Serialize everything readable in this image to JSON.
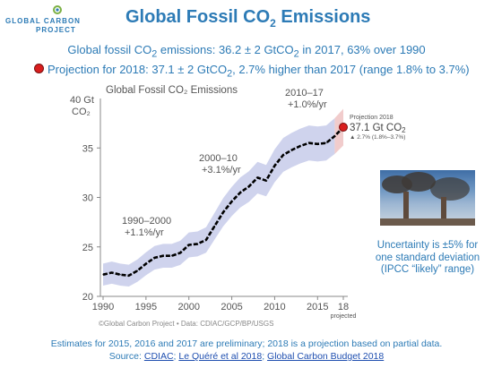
{
  "header": {
    "logo_top": "GLOBAL CARBON",
    "logo_bottom": "PROJECT",
    "title_main": "Global Fossil CO",
    "title_sub": "2",
    "title_end": " Emissions"
  },
  "summary": {
    "line1_a": "Global fossil CO",
    "line1_sub": "2",
    "line1_b": " emissions: 36.2 ± 2 GtCO",
    "line1_sub2": "2",
    "line1_c": " in 2017, 63% over 1990",
    "line2_a": "Projection for 2018: 37.1 ± 2 GtCO",
    "line2_sub": "2",
    "line2_b": ", 2.7% higher than 2017 (range 1.8% to 3.7%)"
  },
  "chart_data": {
    "type": "line",
    "title": "Global Fossil CO₂ Emissions",
    "xlim": [
      1990,
      2018
    ],
    "ylim": [
      20,
      40
    ],
    "ylabel_top": "40 Gt",
    "ylabel_unit": "CO₂",
    "x_ticks": [
      "1990",
      "1995",
      "2000",
      "2005",
      "2010",
      "2015",
      "18"
    ],
    "x_tick_sub": "projected",
    "y_ticks": [
      "20",
      "25",
      "30",
      "35"
    ],
    "grid": false,
    "series": [
      {
        "x": [
          1990,
          1991,
          1992,
          1993,
          1994,
          1995,
          1996,
          1997,
          1998,
          1999,
          2000,
          2001,
          2002,
          2003,
          2004,
          2005,
          2006,
          2007,
          2008,
          2009,
          2010,
          2011,
          2012,
          2013,
          2014,
          2015,
          2016,
          2017,
          2018
        ],
        "y": [
          22.2,
          22.4,
          22.2,
          22.1,
          22.6,
          23.3,
          23.9,
          24.1,
          24.1,
          24.4,
          25.2,
          25.3,
          25.7,
          27.1,
          28.5,
          29.6,
          30.5,
          31.1,
          32.0,
          31.7,
          33.2,
          34.3,
          34.8,
          35.2,
          35.5,
          35.4,
          35.5,
          36.2,
          37.1
        ],
        "uncertainty_pct": 5
      }
    ],
    "annotations": [
      {
        "l1": "1990–2000",
        "l2": "+1.1%/yr"
      },
      {
        "l1": "2000–10",
        "l2": "+3.1%/yr"
      },
      {
        "l1": "2010–17",
        "l2": "+1.0%/yr"
      }
    ],
    "projection_label": {
      "title": "Projection 2018",
      "value_a": "37.1 Gt CO",
      "value_sub": "2",
      "range": "▲ 2.7% (1.8%–3.7%)"
    },
    "credit": "Global Carbon Project • Data: CDIAC/GCP/BP/USGS",
    "colors": {
      "line": "#000000",
      "band": "#c7cbea",
      "band_projection": "#efc6c6",
      "projection_dot": "#d91e1e",
      "text": "#555555"
    }
  },
  "caption": {
    "l1": "Uncertainty is ±5% for",
    "l2": "one standard deviation",
    "l3": "(IPCC “likely” range)"
  },
  "footer": {
    "note": "Estimates for 2015, 2016 and 2017 are preliminary; 2018 is a projection based on partial data.",
    "source_label": "Source: ",
    "link1": "CDIAC",
    "link2": "Le Quéré et al 2018",
    "link3": "Global Carbon Budget 2018",
    "sep": "; "
  },
  "icons": {
    "logo": "globe-logo-icon",
    "projection_marker": "red-dot-icon",
    "photo": "smokestack-photo"
  }
}
